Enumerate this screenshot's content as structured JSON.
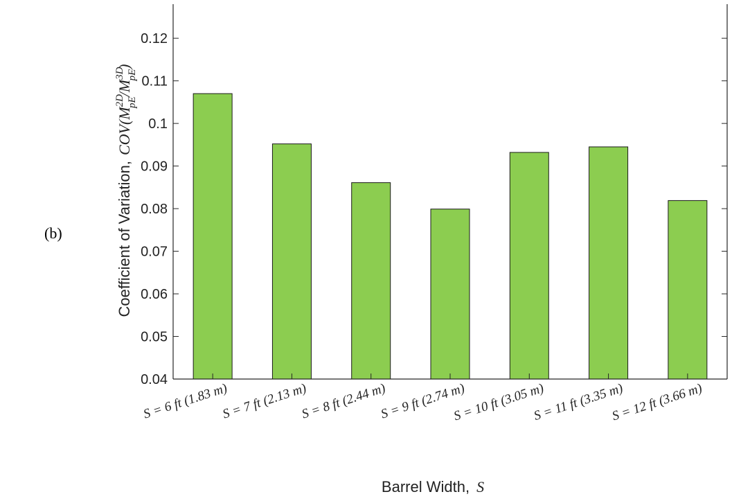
{
  "panel_label": "(b)",
  "chart_data": {
    "type": "bar",
    "categories": [
      "S = 6 ft (1.83 m)",
      "S = 7 ft (2.13 m)",
      "S = 8 ft (2.44 m)",
      "S = 9 ft (2.74 m)",
      "S = 10 ft (3.05 m)",
      "S = 11 ft (3.35 m)",
      "S = 12 ft (3.66 m)"
    ],
    "values": [
      0.107,
      0.0952,
      0.0861,
      0.0799,
      0.0932,
      0.0945,
      0.0819
    ],
    "ylim": [
      0.04,
      0.128
    ],
    "yticks": [
      0.04,
      0.05,
      0.06,
      0.07,
      0.08,
      0.09,
      0.1,
      0.11,
      0.12
    ],
    "xlabel": "Barrel Width,",
    "xlabel_symbol": "S",
    "ylabel": "Coefficient of Variation,",
    "ylabel_math": {
      "prefix": "COV(M",
      "sup1": "2D",
      "sub1": "pE",
      "mid": "/M",
      "sup2": "3D",
      "sub2": "pE",
      "suffix": ")"
    },
    "bar_color": "#8ccd50",
    "grid": false
  }
}
